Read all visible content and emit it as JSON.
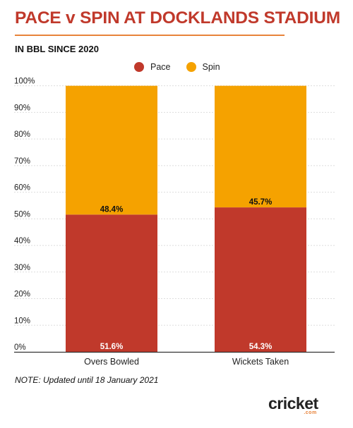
{
  "title": "PACE v SPIN AT DOCKLANDS STADIUM",
  "subtitle": "IN BBL SINCE 2020",
  "note": "NOTE: Updated until 18 January 2021",
  "logo": {
    "word": "cricket",
    "suffix": ".com"
  },
  "colors": {
    "pace": "#c0392b",
    "spin": "#f5a200",
    "title": "#c0392b",
    "rule": "#e8833a"
  },
  "chart_data": {
    "type": "bar",
    "stacked": true,
    "categories": [
      "Overs Bowled",
      "Wickets Taken"
    ],
    "series": [
      {
        "name": "Pace",
        "values": [
          51.6,
          54.3
        ],
        "labels": [
          "51.6%",
          "54.3%"
        ]
      },
      {
        "name": "Spin",
        "values": [
          48.4,
          45.7
        ],
        "labels": [
          "48.4%",
          "45.7%"
        ]
      }
    ],
    "ylim": [
      0,
      100
    ],
    "yticks": [
      "0%",
      "10%",
      "20%",
      "30%",
      "40%",
      "50%",
      "60%",
      "70%",
      "80%",
      "90%",
      "100%"
    ],
    "title": "PACE v SPIN AT DOCKLANDS STADIUM",
    "xlabel": "",
    "ylabel": "",
    "legend": "top-center",
    "grid": true
  }
}
